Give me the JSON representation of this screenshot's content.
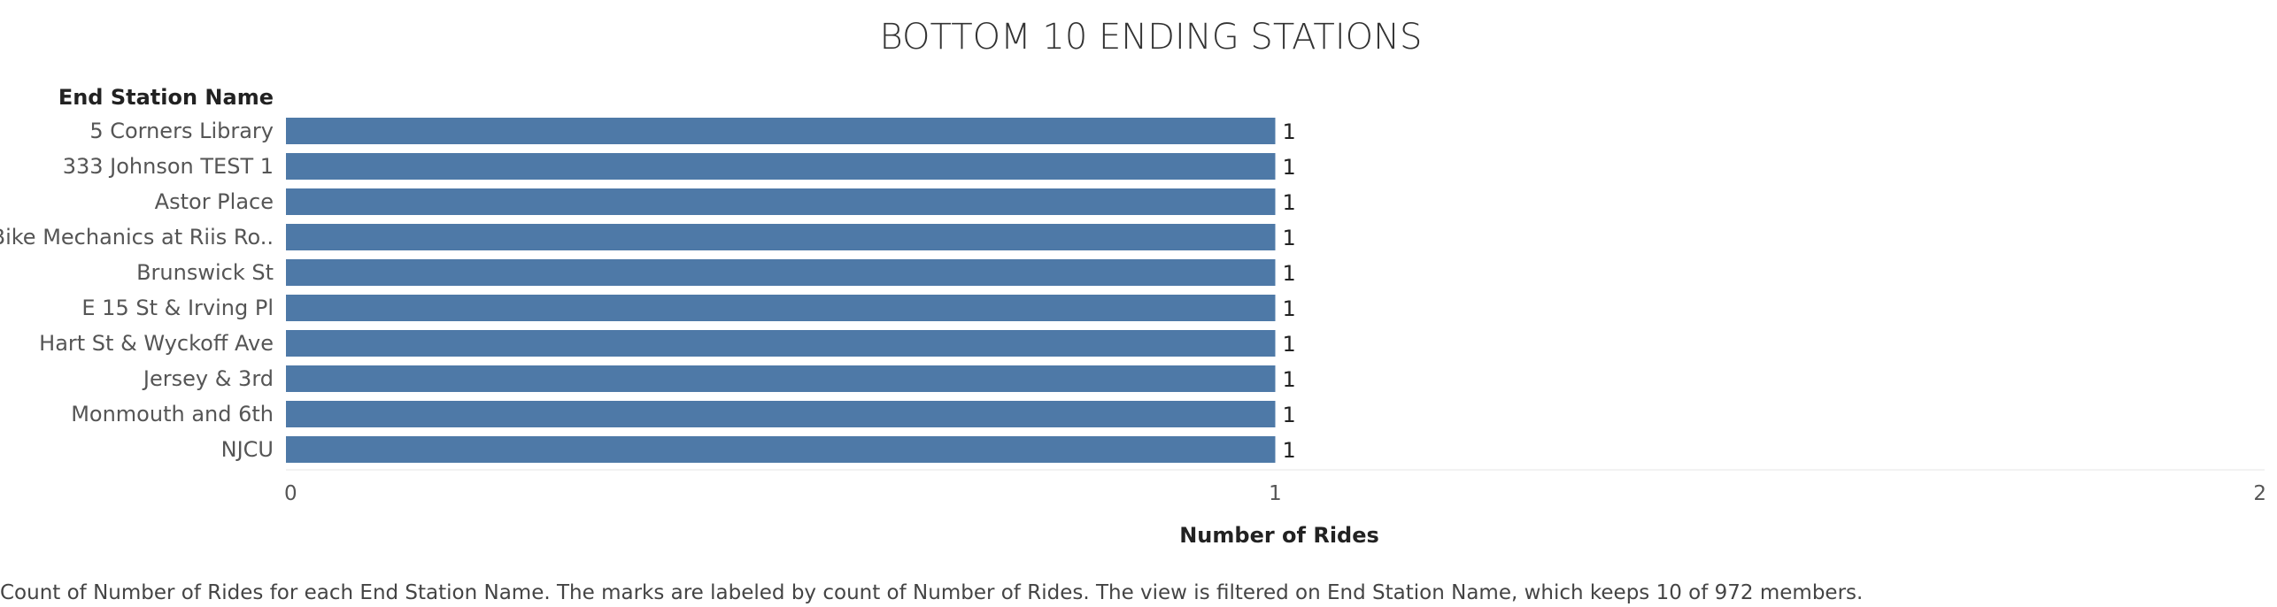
{
  "chart_data": {
    "type": "bar",
    "orientation": "horizontal",
    "title": "BOTTOM 10 ENDING STATIONS",
    "row_header": "End Station Name",
    "categories": [
      "5 Corners Library",
      "333 Johnson TEST 1",
      "Astor Place",
      "Bike Mechanics at Riis Ro..",
      "Brunswick St",
      "E 15 St & Irving Pl",
      "Hart St & Wyckoff Ave",
      "Jersey & 3rd",
      "Monmouth and 6th",
      "NJCU"
    ],
    "values": [
      1,
      1,
      1,
      1,
      1,
      1,
      1,
      1,
      1,
      1
    ],
    "data_labels": [
      "1",
      "1",
      "1",
      "1",
      "1",
      "1",
      "1",
      "1",
      "1",
      "1"
    ],
    "xlabel": "Number of Rides",
    "xlim": [
      0,
      2
    ],
    "x_ticks": [
      "0",
      "1",
      "2"
    ],
    "bar_color": "#4e79a7",
    "grid": false
  },
  "caption": "Count of Number of Rides for each End Station Name.  The marks are labeled by count of Number of Rides. The view is filtered on End Station Name, which keeps 10 of 972 members."
}
